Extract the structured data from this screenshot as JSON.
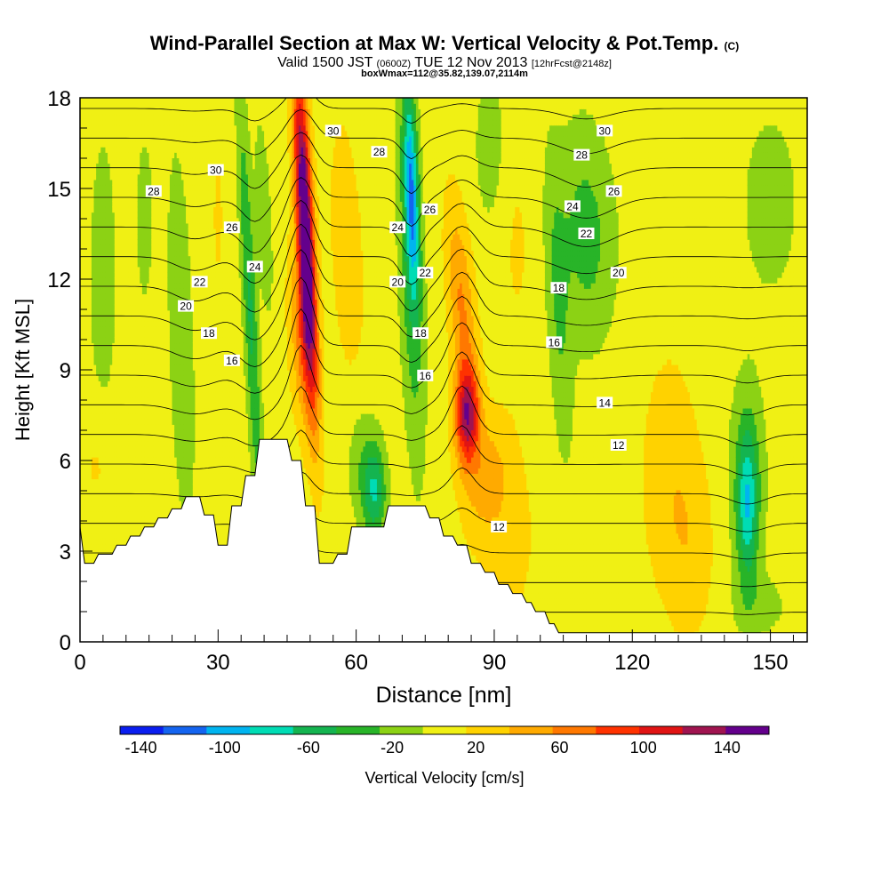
{
  "title": {
    "main": "Wind-Parallel Section at Max W: Vertical Velocity & Pot.Temp.",
    "copyright": "(C)",
    "valid_prefix": "Valid 1500 JST",
    "valid_utc": "(0600Z)",
    "valid_date": "TUE 12 Nov 2013",
    "forecast": "[12hrFcst@2148z]",
    "boxwmax": "boxWmax=112@35.82,139.07,2114m"
  },
  "chart_data": {
    "type": "heatmap",
    "xlabel": "Distance [nm]",
    "ylabel": "Height [Kft MSL]",
    "xlim": [
      0,
      158
    ],
    "ylim": [
      0,
      18
    ],
    "x_ticks": [
      0,
      30,
      60,
      90,
      120,
      150
    ],
    "y_ticks": [
      0,
      3,
      6,
      9,
      12,
      15,
      18
    ],
    "colorbar": {
      "label": "Vertical Velocity [cm/s]",
      "tick_labels": [
        -140,
        -100,
        -60,
        -20,
        20,
        60,
        100,
        140
      ],
      "range": [
        -150,
        160
      ],
      "colors": [
        "#0a1ef0",
        "#1464f0",
        "#00b4f0",
        "#00dcb4",
        "#14b450",
        "#28b428",
        "#8cd214",
        "#f0f014",
        "#ffd200",
        "#ffaa00",
        "#ff7800",
        "#ff3200",
        "#e11414",
        "#a01450",
        "#64008c"
      ]
    },
    "terrain": [
      [
        0,
        3.8
      ],
      [
        1,
        2.6
      ],
      [
        3,
        2.6
      ],
      [
        4,
        2.9
      ],
      [
        7,
        2.9
      ],
      [
        8,
        3.2
      ],
      [
        10,
        3.2
      ],
      [
        11,
        3.5
      ],
      [
        13,
        3.5
      ],
      [
        14,
        3.8
      ],
      [
        16,
        3.8
      ],
      [
        17,
        4.1
      ],
      [
        19,
        4.1
      ],
      [
        20,
        4.4
      ],
      [
        22,
        4.4
      ],
      [
        23,
        4.8
      ],
      [
        26,
        4.8
      ],
      [
        27,
        4.2
      ],
      [
        29,
        4.2
      ],
      [
        30,
        3.2
      ],
      [
        32,
        3.2
      ],
      [
        33,
        4.5
      ],
      [
        35,
        4.5
      ],
      [
        36,
        5.5
      ],
      [
        38,
        5.5
      ],
      [
        39,
        6.7
      ],
      [
        45,
        6.7
      ],
      [
        46,
        6.0
      ],
      [
        48,
        6.0
      ],
      [
        49,
        4.5
      ],
      [
        51,
        4.5
      ],
      [
        52,
        2.6
      ],
      [
        55,
        2.6
      ],
      [
        56,
        2.9
      ],
      [
        58,
        2.9
      ],
      [
        59,
        3.8
      ],
      [
        66,
        3.8
      ],
      [
        67,
        4.5
      ],
      [
        75,
        4.5
      ],
      [
        76,
        4.1
      ],
      [
        78,
        4.1
      ],
      [
        79,
        3.5
      ],
      [
        81,
        3.5
      ],
      [
        82,
        3.2
      ],
      [
        84,
        3.2
      ],
      [
        85,
        2.6
      ],
      [
        87,
        2.6
      ],
      [
        88,
        2.3
      ],
      [
        90,
        2.3
      ],
      [
        91,
        1.9
      ],
      [
        93,
        1.9
      ],
      [
        94,
        1.6
      ],
      [
        96,
        1.6
      ],
      [
        97,
        1.3
      ],
      [
        98,
        1.3
      ],
      [
        99,
        1.0
      ],
      [
        101,
        1.0
      ],
      [
        102,
        0.6
      ],
      [
        103,
        0.6
      ],
      [
        104,
        0.3
      ],
      [
        158,
        0.3
      ]
    ],
    "w_field": {
      "background": 5,
      "features": [
        {
          "x": 49,
          "y": 13.5,
          "sx": 1.8,
          "sy": 5.5,
          "amp": 175,
          "slope": -0.3
        },
        {
          "x": 48,
          "y": 10,
          "sx": 2.5,
          "sy": 3,
          "amp": 50,
          "slope": -0.3
        },
        {
          "x": 84,
          "y": 7.5,
          "sx": 2.6,
          "sy": 1.6,
          "amp": 115,
          "slope": 0
        },
        {
          "x": 83,
          "y": 11,
          "sx": 2.8,
          "sy": 3.5,
          "amp": 55,
          "slope": -0.5
        },
        {
          "x": 88,
          "y": 5.5,
          "sx": 5,
          "sy": 2,
          "amp": 35,
          "slope": 0.5
        },
        {
          "x": 58,
          "y": 13,
          "sx": 4,
          "sy": 5,
          "amp": 20,
          "slope": -0.3
        },
        {
          "x": 93,
          "y": 3.5,
          "sx": 6,
          "sy": 3,
          "amp": 20,
          "slope": 0
        },
        {
          "x": 128,
          "y": 5.5,
          "sx": 6,
          "sy": 4,
          "amp": 25,
          "slope": 0
        },
        {
          "x": 133,
          "y": 3,
          "sx": 5,
          "sy": 3,
          "amp": 20,
          "slope": 0
        },
        {
          "x": 4,
          "y": 6,
          "sx": 4,
          "sy": 2,
          "amp": 15,
          "slope": 0
        },
        {
          "x": 37,
          "y": 11,
          "sx": 1.5,
          "sy": 7,
          "amp": -55,
          "slope": -0.3
        },
        {
          "x": 40,
          "y": 14,
          "sx": 1.5,
          "sy": 3,
          "amp": -30,
          "slope": -0.3
        },
        {
          "x": 72,
          "y": 15,
          "sx": 1.5,
          "sy": 3.5,
          "amp": -90,
          "slope": -0.2
        },
        {
          "x": 72,
          "y": 12,
          "sx": 2.5,
          "sy": 6,
          "amp": -45,
          "slope": -0.2
        },
        {
          "x": 64,
          "y": 5,
          "sx": 2.5,
          "sy": 1.6,
          "amp": -70,
          "slope": 0
        },
        {
          "x": 61,
          "y": 6,
          "sx": 3,
          "sy": 2,
          "amp": -25,
          "slope": 0
        },
        {
          "x": 145,
          "y": 4.5,
          "sx": 2.2,
          "sy": 2.5,
          "amp": -70,
          "slope": 0
        },
        {
          "x": 145,
          "y": 5.5,
          "sx": 4,
          "sy": 3.5,
          "amp": -30,
          "slope": 0
        },
        {
          "x": 110,
          "y": 13.5,
          "sx": 6,
          "sy": 3.5,
          "amp": -40,
          "slope": -0.2
        },
        {
          "x": 104,
          "y": 11,
          "sx": 2.5,
          "sy": 5,
          "amp": -30,
          "slope": -0.3
        },
        {
          "x": 22,
          "y": 10,
          "sx": 2.5,
          "sy": 6,
          "amp": -30,
          "slope": -0.2
        },
        {
          "x": 5,
          "y": 12,
          "sx": 3,
          "sy": 5,
          "amp": -22,
          "slope": 0
        },
        {
          "x": 14,
          "y": 14,
          "sx": 2,
          "sy": 3,
          "amp": -20,
          "slope": 0
        },
        {
          "x": 89,
          "y": 16.5,
          "sx": 3,
          "sy": 2.5,
          "amp": -25,
          "slope": 0
        },
        {
          "x": 150,
          "y": 14.5,
          "sx": 6,
          "sy": 3,
          "amp": -22,
          "slope": 0
        },
        {
          "x": 148,
          "y": 1.2,
          "sx": 6,
          "sy": 1,
          "amp": -18,
          "slope": 0
        },
        {
          "x": 30,
          "y": 14,
          "sx": 2,
          "sy": 4,
          "amp": 12,
          "slope": 0
        },
        {
          "x": 95,
          "y": 13,
          "sx": 4,
          "sy": 4,
          "amp": 12,
          "slope": 0
        }
      ]
    },
    "theta_field": {
      "base": 11.0,
      "lapse_per_kft": 1.02,
      "features": [
        {
          "x": 48,
          "y": 12,
          "sx": 3.5,
          "sy": 6,
          "amp": -2.3
        },
        {
          "x": 83,
          "y": 10,
          "sx": 4,
          "sy": 5,
          "amp": -1.8
        },
        {
          "x": 72,
          "y": 13,
          "sx": 3,
          "sy": 5,
          "amp": 1.0
        },
        {
          "x": 38,
          "y": 12,
          "sx": 4,
          "sy": 6,
          "amp": 0.9
        },
        {
          "x": 110,
          "y": 14,
          "sx": 8,
          "sy": 4,
          "amp": 0.7
        },
        {
          "x": 25,
          "y": 11,
          "sx": 6,
          "sy": 5,
          "amp": 0.5
        },
        {
          "x": 145,
          "y": 6,
          "sx": 5,
          "sy": 4,
          "amp": 0.4
        }
      ]
    },
    "theta_levels": [
      11,
      12,
      13,
      14,
      15,
      16,
      17,
      18,
      19,
      20,
      21,
      22,
      23,
      24,
      25,
      26,
      27,
      28,
      29,
      30,
      31,
      32
    ],
    "theta_labels": [
      {
        "x": 29.5,
        "y": 15.6,
        "text": "30"
      },
      {
        "x": 16,
        "y": 14.9,
        "text": "28"
      },
      {
        "x": 33,
        "y": 13.7,
        "text": "26"
      },
      {
        "x": 38,
        "y": 12.4,
        "text": "24"
      },
      {
        "x": 26,
        "y": 11.9,
        "text": "22"
      },
      {
        "x": 23,
        "y": 11.1,
        "text": "20"
      },
      {
        "x": 28,
        "y": 10.2,
        "text": "18"
      },
      {
        "x": 33,
        "y": 9.3,
        "text": "16"
      },
      {
        "x": 55,
        "y": 16.9,
        "text": "30"
      },
      {
        "x": 65,
        "y": 16.2,
        "text": "28"
      },
      {
        "x": 76,
        "y": 14.3,
        "text": "26"
      },
      {
        "x": 69,
        "y": 13.7,
        "text": "24"
      },
      {
        "x": 75,
        "y": 12.2,
        "text": "22"
      },
      {
        "x": 69,
        "y": 11.9,
        "text": "20"
      },
      {
        "x": 74,
        "y": 10.2,
        "text": "18"
      },
      {
        "x": 75,
        "y": 8.8,
        "text": "16"
      },
      {
        "x": 114,
        "y": 16.9,
        "text": "30"
      },
      {
        "x": 109,
        "y": 16.1,
        "text": "28"
      },
      {
        "x": 116,
        "y": 14.9,
        "text": "26"
      },
      {
        "x": 107,
        "y": 14.4,
        "text": "24"
      },
      {
        "x": 110,
        "y": 13.5,
        "text": "22"
      },
      {
        "x": 117,
        "y": 12.2,
        "text": "20"
      },
      {
        "x": 104,
        "y": 11.7,
        "text": "18"
      },
      {
        "x": 103,
        "y": 9.9,
        "text": "16"
      },
      {
        "x": 114,
        "y": 7.9,
        "text": "14"
      },
      {
        "x": 117,
        "y": 6.5,
        "text": "12"
      },
      {
        "x": 91,
        "y": 3.8,
        "text": "12"
      }
    ]
  }
}
